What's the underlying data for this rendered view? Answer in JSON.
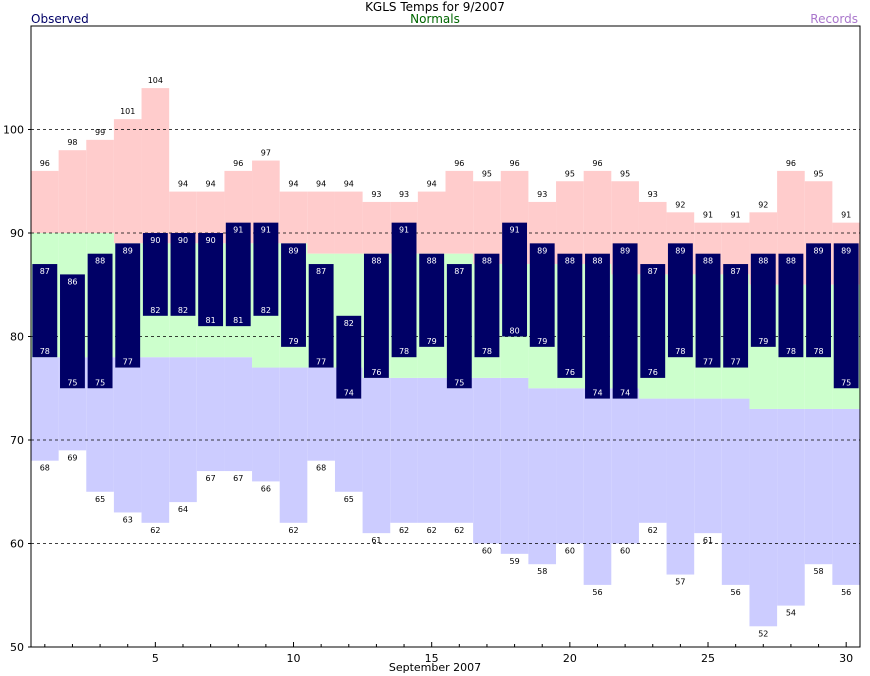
{
  "chart_data": {
    "type": "bar",
    "title": "KGLS Temps for 9/2007",
    "xlabel": "September 2007",
    "ylabel": "",
    "legend": {
      "observed": "Observed",
      "normals": "Normals",
      "records": "Records",
      "placement": "top"
    },
    "ylim": [
      50,
      110
    ],
    "xlim": [
      0.5,
      30.5
    ],
    "yticks": [
      50,
      60,
      70,
      80,
      90,
      100
    ],
    "xticks": [
      5,
      10,
      15,
      20,
      25,
      30
    ],
    "grid": "dashed horizontal lines at 60, 70, 80, 90, 100",
    "colors": {
      "observed": "#000066",
      "normals": "#ccffcc",
      "records_high": "#ffcccc",
      "records_low": "#ccccff",
      "obs_label_text": "#ffffff",
      "legend_observed": "#000066",
      "legend_normals": "#006600",
      "legend_records": "#aa77cc",
      "grid": "#000000"
    },
    "days": [
      1,
      2,
      3,
      4,
      5,
      6,
      7,
      8,
      9,
      10,
      11,
      12,
      13,
      14,
      15,
      16,
      17,
      18,
      19,
      20,
      21,
      22,
      23,
      24,
      25,
      26,
      27,
      28,
      29,
      30
    ],
    "observed_high": [
      87,
      86,
      88,
      89,
      90,
      90,
      90,
      91,
      91,
      89,
      87,
      82,
      88,
      91,
      88,
      87,
      88,
      91,
      89,
      88,
      88,
      89,
      87,
      89,
      88,
      87,
      88,
      88,
      89,
      89
    ],
    "observed_low": [
      78,
      75,
      75,
      77,
      82,
      82,
      81,
      81,
      82,
      79,
      77,
      74,
      76,
      78,
      79,
      75,
      78,
      80,
      79,
      76,
      74,
      74,
      76,
      78,
      77,
      77,
      79,
      78,
      78,
      75
    ],
    "normal_high": [
      90,
      90,
      90,
      89,
      89,
      89,
      89,
      89,
      89,
      89,
      88,
      88,
      88,
      88,
      88,
      88,
      87,
      87,
      87,
      87,
      87,
      86,
      86,
      86,
      86,
      86,
      85,
      85,
      85,
      85
    ],
    "normal_low": [
      78,
      78,
      78,
      78,
      78,
      78,
      78,
      78,
      77,
      77,
      77,
      77,
      76,
      76,
      76,
      76,
      76,
      76,
      75,
      75,
      75,
      75,
      74,
      74,
      74,
      74,
      73,
      73,
      73,
      73
    ],
    "record_high": [
      96,
      98,
      99,
      101,
      104,
      94,
      94,
      96,
      97,
      94,
      94,
      94,
      93,
      93,
      94,
      96,
      95,
      96,
      93,
      95,
      96,
      95,
      93,
      92,
      91,
      91,
      92,
      96,
      95,
      91
    ],
    "record_low": [
      68,
      69,
      65,
      63,
      62,
      64,
      67,
      67,
      66,
      62,
      68,
      65,
      61,
      62,
      62,
      62,
      60,
      59,
      58,
      60,
      56,
      60,
      62,
      57,
      61,
      56,
      52,
      54,
      58,
      56
    ]
  }
}
